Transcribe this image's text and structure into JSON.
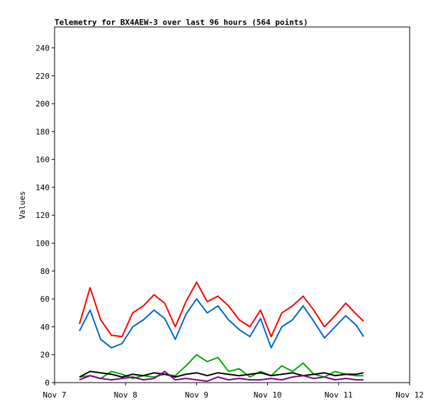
{
  "chart_data": {
    "type": "line",
    "title": "Telemetry for BX4AEW-3 over last 96 hours (564 points)",
    "xlabel": "",
    "ylabel": "Values",
    "ylim": [
      0,
      255
    ],
    "xlim": [
      0,
      5
    ],
    "x_tick_values": [
      0,
      1,
      2,
      3,
      4,
      5
    ],
    "x_tick_labels": [
      "Nov 7",
      "Nov 8",
      "Nov 9",
      "Nov 10",
      "Nov 11",
      "Nov 12"
    ],
    "y_ticks": [
      0,
      20,
      40,
      60,
      80,
      100,
      120,
      140,
      160,
      180,
      200,
      220,
      240
    ],
    "grid": false,
    "legend": "none",
    "x": [
      0.35,
      0.5,
      0.65,
      0.8,
      0.95,
      1.1,
      1.25,
      1.4,
      1.55,
      1.7,
      1.85,
      2.0,
      2.15,
      2.3,
      2.45,
      2.6,
      2.75,
      2.9,
      3.05,
      3.2,
      3.35,
      3.5,
      3.65,
      3.8,
      3.95,
      4.1,
      4.25,
      4.35
    ],
    "series": [
      {
        "color": "#ff0000",
        "values": [
          42,
          68,
          45,
          34,
          33,
          50,
          55,
          63,
          57,
          40,
          58,
          72,
          58,
          62,
          55,
          45,
          40,
          52,
          33,
          50,
          55,
          62,
          52,
          40,
          48,
          57,
          49,
          44
        ]
      },
      {
        "color": "#0066cc",
        "values": [
          37,
          52,
          31,
          25,
          28,
          40,
          45,
          52,
          46,
          31,
          49,
          60,
          50,
          55,
          45,
          38,
          33,
          46,
          25,
          40,
          45,
          55,
          44,
          32,
          40,
          48,
          41,
          33
        ]
      },
      {
        "color": "#00aa00",
        "values": [
          4,
          5,
          3,
          8,
          6,
          3,
          5,
          4,
          6,
          5,
          12,
          20,
          15,
          18,
          8,
          10,
          4,
          8,
          5,
          12,
          8,
          14,
          6,
          4,
          8,
          6,
          5,
          5
        ]
      },
      {
        "color": "#000000",
        "values": [
          4,
          8,
          7,
          6,
          4,
          6,
          5,
          7,
          6,
          4,
          6,
          7,
          5,
          7,
          6,
          5,
          6,
          7,
          5,
          6,
          7,
          5,
          6,
          7,
          5,
          6,
          6,
          7
        ]
      },
      {
        "color": "#800080",
        "values": [
          2,
          5,
          3,
          2,
          3,
          4,
          2,
          3,
          8,
          2,
          3,
          2,
          1,
          4,
          2,
          3,
          2,
          2,
          3,
          2,
          4,
          5,
          3,
          4,
          2,
          3,
          2,
          2
        ]
      }
    ]
  }
}
